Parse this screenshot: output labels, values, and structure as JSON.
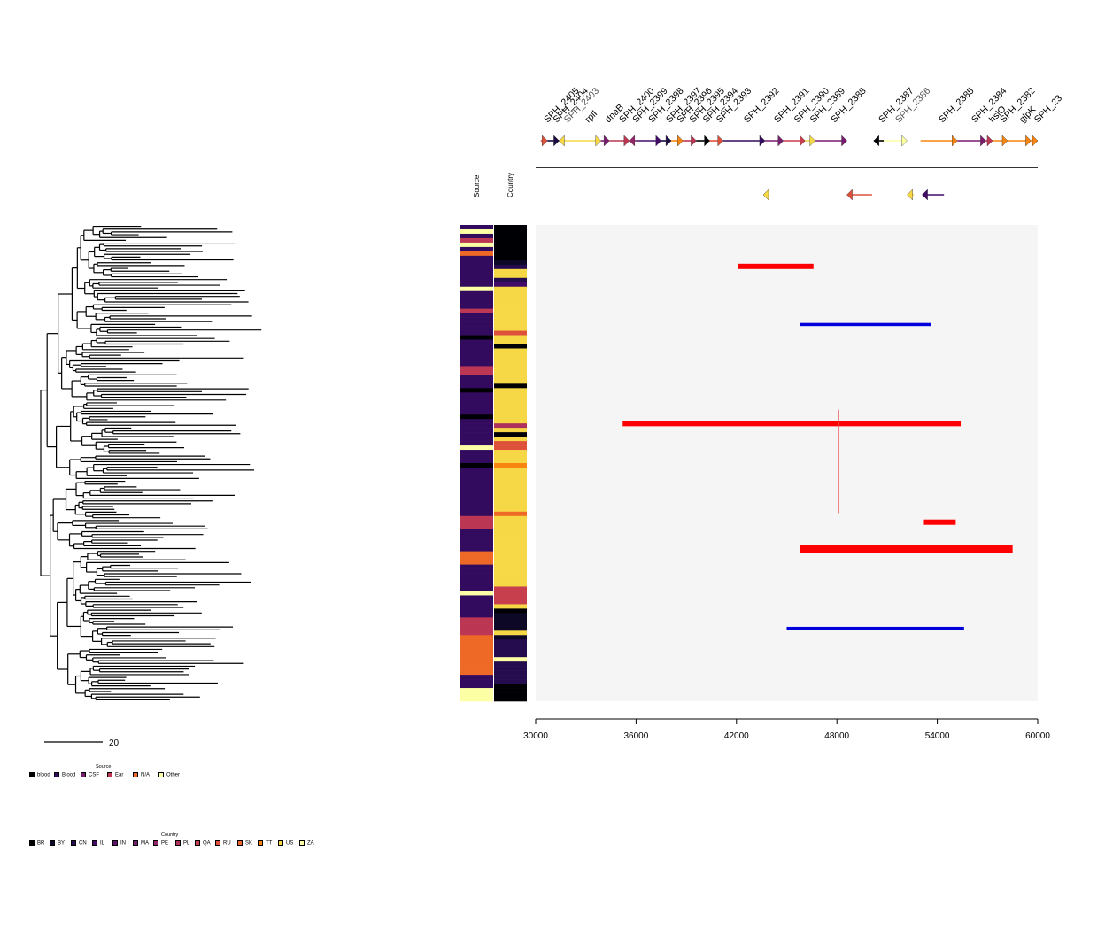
{
  "column_headers": [
    "Source",
    "Country"
  ],
  "scale_bar_label": "20",
  "source_legend": {
    "title": "Source",
    "items": [
      {
        "label": "blood",
        "color": "#000004"
      },
      {
        "label": "Blood",
        "color": "#320a5e"
      },
      {
        "label": "CSF",
        "color": "#781c6d"
      },
      {
        "label": "Ear",
        "color": "#bc3754"
      },
      {
        "label": "N/A",
        "color": "#ed6925"
      },
      {
        "label": "Other",
        "color": "#fcffa4"
      }
    ]
  },
  "country_legend": {
    "title": "Country",
    "items": [
      {
        "label": "BR",
        "color": "#000004"
      },
      {
        "label": "BY",
        "color": "#0c0826"
      },
      {
        "label": "CN",
        "color": "#240c4f"
      },
      {
        "label": "IL",
        "color": "#420a68"
      },
      {
        "label": "IN",
        "color": "#5d126e"
      },
      {
        "label": "MA",
        "color": "#781c6d"
      },
      {
        "label": "PE",
        "color": "#932667"
      },
      {
        "label": "PL",
        "color": "#ae305c"
      },
      {
        "label": "QA",
        "color": "#c73e4c"
      },
      {
        "label": "RU",
        "color": "#dd513a"
      },
      {
        "label": "SK",
        "color": "#ed6925"
      },
      {
        "label": "TT",
        "color": "#f8850f"
      },
      {
        "label": "US",
        "color": "#f6d746"
      },
      {
        "label": "ZA",
        "color": "#fcffa4"
      }
    ]
  },
  "chart_data": {
    "type": "line",
    "xlim": [
      30000,
      60000
    ],
    "x_ticks": [
      "30000",
      "36000",
      "42000",
      "48000",
      "54000",
      "60000"
    ],
    "genes": [
      {
        "name": "SPH_2405",
        "start": 30300,
        "end": 30700,
        "strand": 1,
        "color": "#dd513a"
      },
      {
        "name": "SPH_2404",
        "start": 30700,
        "end": 31400,
        "strand": 1,
        "color": "#1b0c41"
      },
      {
        "name": "SPH_2403",
        "start": 31400,
        "end": 32000,
        "strand": -1,
        "color": "#f6d746",
        "muted": true
      },
      {
        "name": "rplI",
        "start": 32000,
        "end": 33900,
        "strand": 1,
        "color": "#f6d746"
      },
      {
        "name": "dnaB",
        "start": 33900,
        "end": 34400,
        "strand": 1,
        "color": "#781c6d"
      },
      {
        "name": "SPH_2400",
        "start": 34400,
        "end": 35600,
        "strand": 1,
        "color": "#bc3754"
      },
      {
        "name": "SPH_2399",
        "start": 35600,
        "end": 36000,
        "strand": -1,
        "color": "#932667"
      },
      {
        "name": "SPH_2398",
        "start": 36000,
        "end": 37500,
        "strand": 1,
        "color": "#420a68"
      },
      {
        "name": "SPH_2397",
        "start": 37500,
        "end": 38100,
        "strand": 1,
        "color": "#1b0c41"
      },
      {
        "name": "SPH_2396",
        "start": 38100,
        "end": 38800,
        "strand": 1,
        "color": "#f8850f"
      },
      {
        "name": "SPH_2395",
        "start": 38800,
        "end": 39600,
        "strand": 1,
        "color": "#bc3754"
      },
      {
        "name": "SPH_2394",
        "start": 39600,
        "end": 40400,
        "strand": 1,
        "color": "#000004"
      },
      {
        "name": "SPH_2393",
        "start": 40400,
        "end": 41200,
        "strand": 1,
        "color": "#dd513a"
      },
      {
        "name": "SPH_2392",
        "start": 41200,
        "end": 43700,
        "strand": 1,
        "color": "#320a5e"
      },
      {
        "name": "SPH_2391",
        "start": 43700,
        "end": 44800,
        "strand": 1,
        "color": "#781c6d"
      },
      {
        "name": "SPH_2390",
        "start": 44800,
        "end": 46100,
        "strand": 1,
        "color": "#c73e4c"
      },
      {
        "name": "SPH_2389",
        "start": 46100,
        "end": 46700,
        "strand": 1,
        "color": "#f6d746"
      },
      {
        "name": "SPH_2388",
        "start": 46700,
        "end": 48600,
        "strand": 1,
        "color": "#781c6d"
      },
      {
        "name": "SPH_2387",
        "start": 50200,
        "end": 50800,
        "strand": -1,
        "color": "#000004"
      },
      {
        "name": "SPH_2386",
        "start": 50800,
        "end": 52200,
        "strand": 1,
        "color": "#fcffa4",
        "muted": true
      },
      {
        "name": "SPH_2385",
        "start": 53000,
        "end": 55200,
        "strand": 1,
        "color": "#f8850f"
      },
      {
        "name": "SPH_2384",
        "start": 55200,
        "end": 56900,
        "strand": 1,
        "color": "#781c6d"
      },
      {
        "name": "hslO",
        "start": 56900,
        "end": 57300,
        "strand": 1,
        "color": "#bc3754"
      },
      {
        "name": "SPH_2382",
        "start": 57300,
        "end": 58200,
        "strand": 1,
        "color": "#f8850f"
      },
      {
        "name": "glpK",
        "start": 58200,
        "end": 59600,
        "strand": 1,
        "color": "#f8850f"
      },
      {
        "name": "SPH_23",
        "start": 59600,
        "end": 60000,
        "strand": 1,
        "color": "#f8850f"
      }
    ],
    "mobile_genes": [
      {
        "start": 43600,
        "end": 43900,
        "strand": -1,
        "color": "#f6d746"
      },
      {
        "start": 48600,
        "end": 50100,
        "strand": -1,
        "color": "#dd513a"
      },
      {
        "start": 52200,
        "end": 52600,
        "strand": -1,
        "color": "#f6d746"
      },
      {
        "start": 53100,
        "end": 54400,
        "strand": -1,
        "color": "#420a68"
      }
    ],
    "recombination_blocks": [
      {
        "start": 42100,
        "end": 46600,
        "y_frac": 0.087,
        "color": "#ff0000",
        "weight": "thick"
      },
      {
        "start": 45800,
        "end": 53600,
        "y_frac": 0.209,
        "color": "#0000dd",
        "weight": "medium"
      },
      {
        "start": 35200,
        "end": 55400,
        "y_frac": 0.417,
        "color": "#ff0000",
        "weight": "thick"
      },
      {
        "start": 53200,
        "end": 55100,
        "y_frac": 0.624,
        "color": "#ff0000",
        "weight": "thick"
      },
      {
        "start": 45800,
        "end": 58500,
        "y_frac": 0.68,
        "color": "#ff0000",
        "weight": "thicker"
      },
      {
        "start": 45000,
        "end": 55600,
        "y_frac": 0.847,
        "color": "#0000dd",
        "weight": "medium"
      }
    ],
    "vertical_marks": [
      {
        "x": 48100,
        "y_from_frac": 0.388,
        "y_to_frac": 0.605,
        "color": "#e85050"
      }
    ]
  }
}
